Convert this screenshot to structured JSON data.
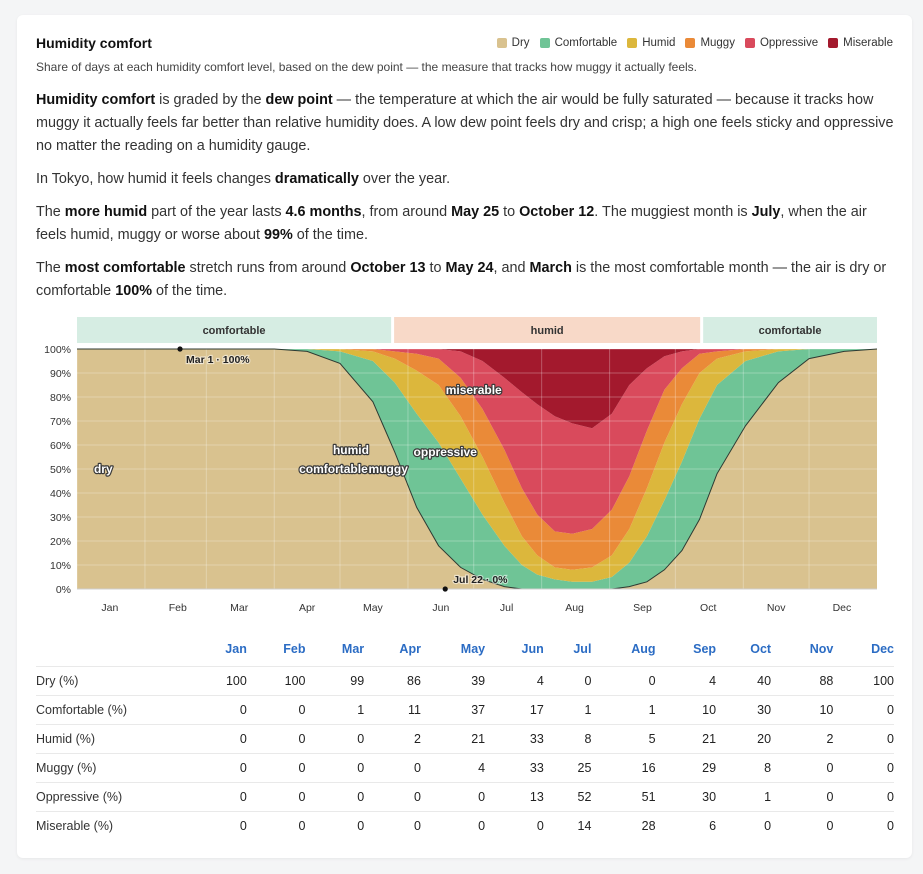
{
  "header": {
    "title": "Humidity comfort",
    "subtitle": "Share of days at each humidity comfort level, based on the dew point — the measure that tracks how muggy it actually feels."
  },
  "legend": [
    {
      "label": "Dry",
      "color": "#d9c28f"
    },
    {
      "label": "Comfortable",
      "color": "#6fc496"
    },
    {
      "label": "Humid",
      "color": "#dcb73c"
    },
    {
      "label": "Muggy",
      "color": "#ea8a38"
    },
    {
      "label": "Oppressive",
      "color": "#d94a5c"
    },
    {
      "label": "Miserable",
      "color": "#a3192d"
    }
  ],
  "prose": {
    "p1": {
      "a": "Humidity comfort",
      "b": " is graded by the ",
      "c": "dew point",
      "d": " — the temperature at which the air would be fully saturated — because it tracks how muggy it actually feels far better than relative humidity does. A low dew point feels dry and crisp; a high one feels sticky and oppressive no matter the reading on a humidity gauge."
    },
    "p2": {
      "a": "In Tokyo, how humid it feels changes ",
      "b": "dramatically",
      "c": " over the year."
    },
    "p3": {
      "a": "The ",
      "b": "more humid",
      "c": " part of the year lasts ",
      "d": "4.6 months",
      "e": ", from around ",
      "f": "May 25",
      "g": " to ",
      "h": "October 12",
      "i": ". The muggiest month is ",
      "j": "July",
      "k": ", when the air feels humid, muggy or worse about ",
      "l": "99%",
      "m": " of the time."
    },
    "p4": {
      "a": "The ",
      "b": "most comfortable",
      "c": " stretch runs from around ",
      "d": "October 13",
      "e": " to ",
      "f": "May 24",
      "g": ", and ",
      "h": "March",
      "i": " is the most comfortable month — the air is dry or comfortable ",
      "j": "100%",
      "k": " of the time."
    }
  },
  "chart_data": {
    "type": "area",
    "stacked": true,
    "x_axis": "day of year",
    "x_tick_labels": [
      "Jan",
      "Feb",
      "Mar",
      "Apr",
      "May",
      "Jun",
      "Jul",
      "Aug",
      "Sep",
      "Oct",
      "Nov",
      "Dec"
    ],
    "y_tick_labels": [
      "0%",
      "10%",
      "20%",
      "30%",
      "40%",
      "50%",
      "60%",
      "70%",
      "80%",
      "90%",
      "100%"
    ],
    "ylim": [
      0,
      100
    ],
    "grid": true,
    "season_bands": [
      {
        "label": "comfortable",
        "from": "Jan 1",
        "to": "May 24"
      },
      {
        "label": "humid",
        "from": "May 25",
        "to": "Oct 12"
      },
      {
        "label": "comfortable",
        "from": "Oct 13",
        "to": "Dec 31"
      }
    ],
    "series_x_days": [
      0,
      31,
      59,
      90,
      105,
      120,
      135,
      145,
      155,
      165,
      175,
      185,
      195,
      203,
      210,
      218,
      226,
      235,
      244,
      252,
      260,
      268,
      276,
      284,
      292,
      305,
      320,
      334,
      350,
      365
    ],
    "series": [
      {
        "name": "Dry",
        "values": [
          100,
          100,
          100,
          100,
          99,
          94,
          78,
          57,
          34,
          18,
          9,
          4,
          1,
          0,
          0,
          0,
          0,
          0,
          0,
          1,
          3,
          8,
          16,
          29,
          48,
          68,
          86,
          96,
          99,
          100
        ]
      },
      {
        "name": "Comfortable",
        "values": [
          0,
          0,
          0,
          0,
          1,
          5,
          17,
          29,
          39,
          43,
          37,
          27,
          17,
          10,
          6,
          4,
          3,
          3,
          5,
          10,
          19,
          29,
          37,
          42,
          37,
          27,
          13,
          4,
          1,
          0
        ]
      },
      {
        "name": "Humid",
        "values": [
          0,
          0,
          0,
          0,
          0,
          1,
          4,
          10,
          18,
          24,
          26,
          24,
          18,
          12,
          8,
          5,
          5,
          6,
          9,
          14,
          20,
          24,
          24,
          19,
          11,
          4,
          1,
          0,
          0,
          0
        ]
      },
      {
        "name": "Muggy",
        "values": [
          0,
          0,
          0,
          0,
          0,
          0,
          1,
          3,
          7,
          11,
          16,
          20,
          22,
          20,
          17,
          15,
          15,
          16,
          19,
          22,
          24,
          22,
          15,
          8,
          3,
          1,
          0,
          0,
          0,
          0
        ]
      },
      {
        "name": "Oppressive",
        "values": [
          0,
          0,
          0,
          0,
          0,
          0,
          0,
          1,
          2,
          4,
          11,
          20,
          30,
          40,
          46,
          48,
          46,
          42,
          40,
          38,
          26,
          14,
          7,
          2,
          1,
          0,
          0,
          0,
          0,
          0
        ]
      },
      {
        "name": "Miserable",
        "values": [
          0,
          0,
          0,
          0,
          0,
          0,
          0,
          0,
          0,
          0,
          1,
          5,
          12,
          18,
          23,
          28,
          31,
          33,
          27,
          15,
          8,
          3,
          1,
          0,
          0,
          0,
          0,
          0,
          0,
          0
        ]
      }
    ],
    "area_labels": [
      {
        "text": "dry",
        "day": 12,
        "value": 50
      },
      {
        "text": "comfortable",
        "day": 117,
        "value": 50
      },
      {
        "text": "humid",
        "day": 125,
        "value": 58
      },
      {
        "text": "muggy",
        "day": 142,
        "value": 50
      },
      {
        "text": "oppressive",
        "day": 168,
        "value": 57
      },
      {
        "text": "miserable",
        "day": 181,
        "value": 83
      }
    ],
    "point_annotations": [
      {
        "text": "Mar 1 · 100%",
        "day": 47,
        "value": 100
      },
      {
        "text": "Jul 22 · 0%",
        "day": 168,
        "value": 0
      }
    ]
  },
  "table": {
    "months": [
      "Jan",
      "Feb",
      "Mar",
      "Apr",
      "May",
      "Jun",
      "Jul",
      "Aug",
      "Sep",
      "Oct",
      "Nov",
      "Dec"
    ],
    "rows": [
      {
        "label": "Dry (%)",
        "values": [
          "100",
          "100",
          "99",
          "86",
          "39",
          "4",
          "0",
          "0",
          "4",
          "40",
          "88",
          "100"
        ]
      },
      {
        "label": "Comfortable (%)",
        "values": [
          "0",
          "0",
          "1",
          "11",
          "37",
          "17",
          "1",
          "1",
          "10",
          "30",
          "10",
          "0"
        ]
      },
      {
        "label": "Humid (%)",
        "values": [
          "0",
          "0",
          "0",
          "2",
          "21",
          "33",
          "8",
          "5",
          "21",
          "20",
          "2",
          "0"
        ]
      },
      {
        "label": "Muggy (%)",
        "values": [
          "0",
          "0",
          "0",
          "0",
          "4",
          "33",
          "25",
          "16",
          "29",
          "8",
          "0",
          "0"
        ]
      },
      {
        "label": "Oppressive (%)",
        "values": [
          "0",
          "0",
          "0",
          "0",
          "0",
          "13",
          "52",
          "51",
          "30",
          "1",
          "0",
          "0"
        ]
      },
      {
        "label": "Miserable (%)",
        "values": [
          "0",
          "0",
          "0",
          "0",
          "0",
          "0",
          "14",
          "28",
          "6",
          "0",
          "0",
          "0"
        ]
      }
    ]
  }
}
